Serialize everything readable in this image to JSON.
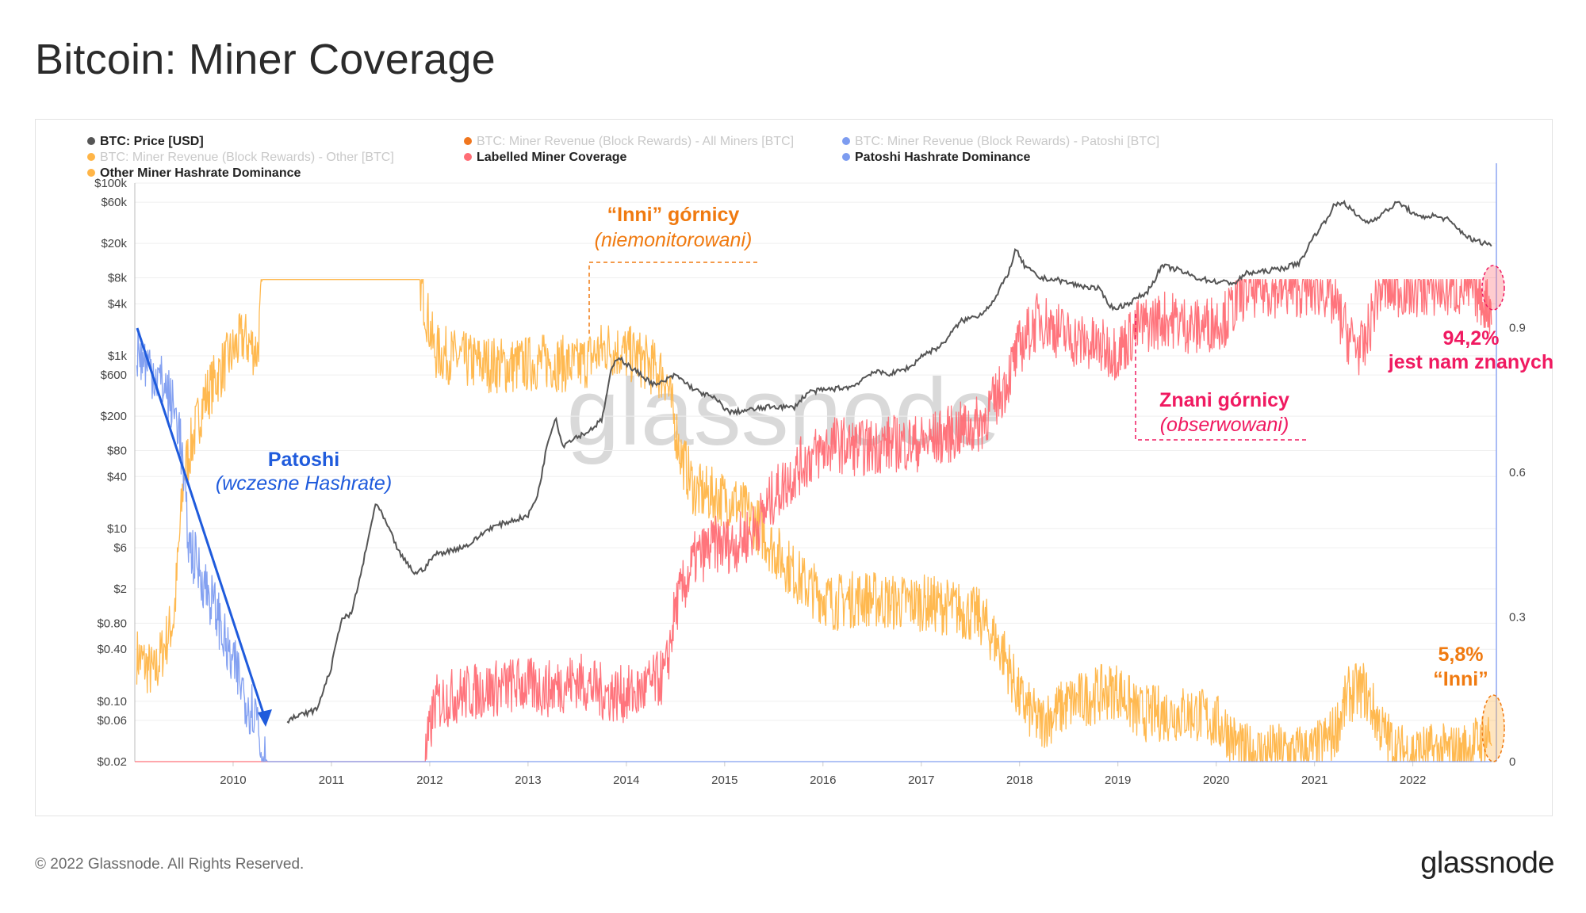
{
  "title": "Bitcoin: Miner Coverage",
  "footer": {
    "copyright": "© 2022 Glassnode. All Rights Reserved.",
    "logo": "glassnode"
  },
  "watermark": "glassnode",
  "colors": {
    "price": "#555555",
    "all_miners": "#f0761e",
    "patoshi_revenue": "#7d9cf0",
    "other_revenue": "#ffb547",
    "labelled_coverage": "#ff6d75",
    "patoshi_dominance": "#7d9cf0",
    "other_dominance": "#ffb547",
    "annotation_blue": "#1f5bdc",
    "annotation_orange": "#f07a10",
    "annotation_pink": "#f01a61",
    "right_axis": "#8ea6f2"
  },
  "annotations": {
    "patoshi_title": "Patoshi",
    "patoshi_sub": "(wczesne Hashrate)",
    "others_title": "“Inni” górnicy",
    "others_sub": "(niemonitorowani)",
    "known_title": "Znani górnicy",
    "known_sub": "(obserwowani)",
    "known_pct": "94,2%",
    "known_pct_label": "jest nam znanych",
    "others_pct": "5,8%",
    "others_pct_label": "“Inni”"
  },
  "chart_data": {
    "type": "line",
    "legend": [
      {
        "name": "BTC: Price [USD]",
        "color": "#555555",
        "active": true
      },
      {
        "name": "BTC: Miner Revenue (Block Rewards) - All Miners [BTC]",
        "color": "#f0761e",
        "active": false
      },
      {
        "name": "BTC: Miner Revenue (Block Rewards) - Patoshi [BTC]",
        "color": "#7d9cf0",
        "active": false
      },
      {
        "name": "BTC: Miner Revenue (Block Rewards) - Other [BTC]",
        "color": "#ffb547",
        "active": false
      },
      {
        "name": "Labelled Miner Coverage",
        "color": "#ff6d75",
        "active": true
      },
      {
        "name": "Patoshi Hashrate Dominance",
        "color": "#7d9cf0",
        "active": true
      },
      {
        "name": "Other Miner Hashrate Dominance",
        "color": "#ffb547",
        "active": true
      }
    ],
    "x_ticks": [
      "2010",
      "2011",
      "2012",
      "2013",
      "2014",
      "2015",
      "2016",
      "2017",
      "2018",
      "2019",
      "2020",
      "2021",
      "2022"
    ],
    "xlim": [
      2009.0,
      2022.85
    ],
    "y_left": {
      "scale": "log",
      "ylim": [
        0.02,
        100000
      ],
      "ticks": [
        {
          "value": 100000,
          "label": "$100k"
        },
        {
          "value": 60000,
          "label": "$60k"
        },
        {
          "value": 20000,
          "label": "$20k"
        },
        {
          "value": 8000,
          "label": "$8k"
        },
        {
          "value": 4000,
          "label": "$4k"
        },
        {
          "value": 1000,
          "label": "$1k"
        },
        {
          "value": 600,
          "label": "$600"
        },
        {
          "value": 200,
          "label": "$200"
        },
        {
          "value": 80,
          "label": "$80"
        },
        {
          "value": 40,
          "label": "$40"
        },
        {
          "value": 10,
          "label": "$10"
        },
        {
          "value": 6,
          "label": "$6"
        },
        {
          "value": 2,
          "label": "$2"
        },
        {
          "value": 0.8,
          "label": "$0.80"
        },
        {
          "value": 0.4,
          "label": "$0.40"
        },
        {
          "value": 0.1,
          "label": "$0.10"
        },
        {
          "value": 0.06,
          "label": "$0.06"
        },
        {
          "value": 0.02,
          "label": "$0.02"
        }
      ]
    },
    "y_right": {
      "scale": "linear",
      "ylim": [
        0,
        1.2
      ],
      "ticks": [
        {
          "value": 0,
          "label": "0"
        },
        {
          "value": 0.3,
          "label": "0.3"
        },
        {
          "value": 0.6,
          "label": "0.6"
        },
        {
          "value": 0.9,
          "label": "0.9"
        }
      ]
    },
    "series": [
      {
        "name": "BTC: Price [USD]",
        "axis": "left",
        "x": [
          2010.55,
          2010.7,
          2010.85,
          2011.0,
          2011.1,
          2011.2,
          2011.3,
          2011.38,
          2011.45,
          2011.55,
          2011.7,
          2011.85,
          2011.95,
          2012.05,
          2012.2,
          2012.4,
          2012.6,
          2012.8,
          2013.0,
          2013.1,
          2013.2,
          2013.28,
          2013.35,
          2013.45,
          2013.6,
          2013.75,
          2013.85,
          2013.92,
          2014.0,
          2014.15,
          2014.3,
          2014.5,
          2014.7,
          2014.9,
          2015.05,
          2015.3,
          2015.5,
          2015.7,
          2015.85,
          2016.0,
          2016.3,
          2016.5,
          2016.7,
          2016.9,
          2017.0,
          2017.2,
          2017.4,
          2017.6,
          2017.75,
          2017.9,
          2017.96,
          2018.05,
          2018.2,
          2018.4,
          2018.6,
          2018.8,
          2018.95,
          2019.1,
          2019.3,
          2019.45,
          2019.6,
          2019.8,
          2020.0,
          2020.2,
          2020.3,
          2020.5,
          2020.7,
          2020.85,
          2021.0,
          2021.1,
          2021.2,
          2021.3,
          2021.45,
          2021.55,
          2021.7,
          2021.85,
          2021.95,
          2022.05,
          2022.2,
          2022.35,
          2022.45,
          2022.6,
          2022.75,
          2022.8
        ],
        "values": [
          0.06,
          0.07,
          0.08,
          0.25,
          0.9,
          1.0,
          3.0,
          8.0,
          20,
          12,
          5,
          3.0,
          3.5,
          5.0,
          5.5,
          6.5,
          10,
          12,
          14,
          25,
          100,
          200,
          90,
          110,
          130,
          180,
          700,
          1000,
          800,
          600,
          450,
          600,
          400,
          320,
          220,
          240,
          260,
          250,
          380,
          400,
          440,
          650,
          620,
          750,
          1000,
          1300,
          2500,
          3000,
          4500,
          10000,
          17000,
          11000,
          8000,
          7500,
          6500,
          6000,
          3500,
          4000,
          5500,
          11000,
          10000,
          8000,
          7200,
          7000,
          9000,
          9500,
          10500,
          12000,
          25000,
          35000,
          55000,
          60000,
          40000,
          35000,
          45000,
          60000,
          50000,
          40000,
          42000,
          38000,
          30000,
          22000,
          20000,
          19500
        ]
      },
      {
        "name": "Labelled Miner Coverage",
        "axis": "right",
        "x": [
          2009.0,
          2010.8,
          2011.95,
          2012.05,
          2012.3,
          2012.6,
          2012.9,
          2013.2,
          2013.5,
          2013.8,
          2014.1,
          2014.4,
          2014.5,
          2014.7,
          2014.9,
          2015.1,
          2015.3,
          2015.5,
          2015.8,
          2016.1,
          2016.4,
          2016.7,
          2017.0,
          2017.3,
          2017.6,
          2017.85,
          2018.0,
          2018.2,
          2018.5,
          2018.8,
          2019.0,
          2019.2,
          2019.5,
          2019.8,
          2020.1,
          2020.3,
          2020.6,
          2020.9,
          2021.1,
          2021.2,
          2021.35,
          2021.5,
          2021.65,
          2021.8,
          2022.0,
          2022.3,
          2022.6,
          2022.8
        ],
        "values": [
          0.0,
          0.0,
          0.0,
          0.12,
          0.14,
          0.15,
          0.16,
          0.15,
          0.17,
          0.14,
          0.14,
          0.18,
          0.32,
          0.42,
          0.45,
          0.45,
          0.48,
          0.55,
          0.62,
          0.66,
          0.65,
          0.66,
          0.66,
          0.68,
          0.7,
          0.78,
          0.86,
          0.92,
          0.88,
          0.86,
          0.85,
          0.9,
          0.92,
          0.9,
          0.92,
          0.98,
          0.98,
          0.98,
          0.98,
          0.95,
          0.88,
          0.85,
          0.98,
          0.98,
          0.98,
          0.98,
          0.98,
          0.94
        ]
      },
      {
        "name": "Patoshi Hashrate Dominance",
        "axis": "right",
        "x": [
          2009.02,
          2009.15,
          2009.3,
          2009.45,
          2009.55,
          2009.65,
          2009.75,
          2009.85,
          2009.95,
          2010.05,
          2010.15,
          2010.25,
          2010.28,
          2010.35,
          2012.0,
          2022.8
        ],
        "values": [
          0.85,
          0.82,
          0.78,
          0.7,
          0.45,
          0.4,
          0.35,
          0.3,
          0.22,
          0.18,
          0.12,
          0.1,
          0.02,
          0.0,
          0.0,
          0.0
        ]
      },
      {
        "name": "Other Miner Hashrate Dominance",
        "axis": "right",
        "x": [
          2009.02,
          2009.2,
          2009.4,
          2009.5,
          2009.7,
          2009.9,
          2010.1,
          2010.25,
          2010.3,
          2011.9,
          2012.05,
          2012.4,
          2012.8,
          2013.2,
          2013.5,
          2013.8,
          2014.1,
          2014.4,
          2014.55,
          2014.7,
          2014.9,
          2015.1,
          2015.3,
          2015.5,
          2015.8,
          2016.1,
          2016.4,
          2016.7,
          2017.0,
          2017.3,
          2017.6,
          2017.85,
          2018.0,
          2018.2,
          2018.5,
          2018.8,
          2019.0,
          2019.2,
          2019.5,
          2019.8,
          2020.1,
          2020.25,
          2020.6,
          2021.0,
          2021.2,
          2021.35,
          2021.5,
          2021.7,
          2021.85,
          2022.2,
          2022.5,
          2022.8
        ],
        "values": [
          0.22,
          0.18,
          0.3,
          0.6,
          0.75,
          0.82,
          0.88,
          0.85,
          1.0,
          1.0,
          0.85,
          0.83,
          0.82,
          0.83,
          0.82,
          0.86,
          0.84,
          0.8,
          0.64,
          0.56,
          0.55,
          0.54,
          0.5,
          0.44,
          0.37,
          0.33,
          0.34,
          0.33,
          0.33,
          0.32,
          0.3,
          0.22,
          0.13,
          0.08,
          0.12,
          0.14,
          0.15,
          0.1,
          0.1,
          0.1,
          0.07,
          0.02,
          0.02,
          0.02,
          0.06,
          0.14,
          0.15,
          0.06,
          0.02,
          0.02,
          0.02,
          0.058
        ]
      }
    ]
  }
}
